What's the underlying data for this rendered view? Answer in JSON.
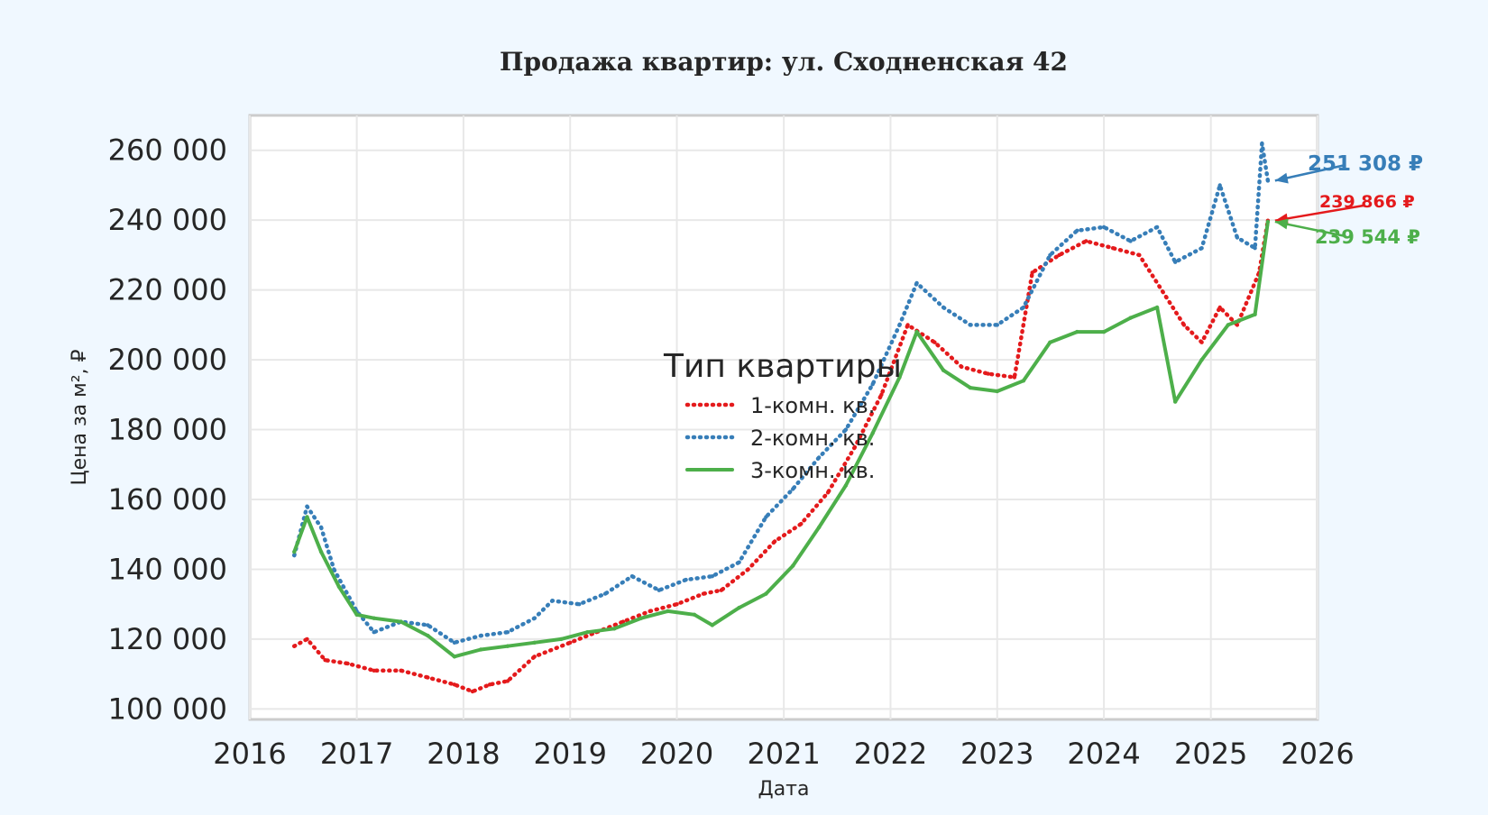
{
  "chart_data": {
    "type": "line",
    "title": "Продажа квартир: ул. Сходненская 42",
    "xlabel": "Дата",
    "ylabel": "Цена за м², ₽",
    "xlim": [
      "2016-01-01",
      "2026-01-01"
    ],
    "ylim": [
      97000,
      270000
    ],
    "x_ticks": [
      "2016",
      "2017",
      "2018",
      "2019",
      "2020",
      "2021",
      "2022",
      "2023",
      "2024",
      "2025",
      "2026"
    ],
    "y_ticks": [
      "100 000",
      "120 000",
      "140 000",
      "160 000",
      "180 000",
      "200 000",
      "220 000",
      "240 000",
      "260 000"
    ],
    "grid": true,
    "legend": {
      "title": "Тип квартиры",
      "placement": "center"
    },
    "series": [
      {
        "name": "1-комн. кв.",
        "color": "#e41a1c",
        "style": "dotted",
        "points": [
          [
            "2016-06-01",
            118000
          ],
          [
            "2016-07-15",
            120000
          ],
          [
            "2016-09-15",
            114000
          ],
          [
            "2016-12-01",
            113000
          ],
          [
            "2017-03-01",
            111000
          ],
          [
            "2017-06-01",
            111000
          ],
          [
            "2017-09-01",
            109000
          ],
          [
            "2017-12-01",
            107000
          ],
          [
            "2018-02-01",
            105000
          ],
          [
            "2018-04-01",
            107000
          ],
          [
            "2018-06-01",
            108000
          ],
          [
            "2018-09-01",
            115000
          ],
          [
            "2019-01-01",
            119000
          ],
          [
            "2019-04-01",
            122000
          ],
          [
            "2019-07-01",
            125000
          ],
          [
            "2019-10-01",
            128000
          ],
          [
            "2020-01-01",
            130000
          ],
          [
            "2020-04-01",
            133000
          ],
          [
            "2020-06-01",
            134000
          ],
          [
            "2020-09-01",
            140000
          ],
          [
            "2020-12-01",
            148000
          ],
          [
            "2021-03-01",
            153000
          ],
          [
            "2021-06-01",
            162000
          ],
          [
            "2021-09-01",
            175000
          ],
          [
            "2021-12-01",
            190000
          ],
          [
            "2022-03-01",
            210000
          ],
          [
            "2022-06-01",
            205000
          ],
          [
            "2022-09-01",
            198000
          ],
          [
            "2022-12-01",
            196000
          ],
          [
            "2023-03-01",
            195000
          ],
          [
            "2023-05-01",
            225000
          ],
          [
            "2023-08-01",
            230000
          ],
          [
            "2023-11-01",
            234000
          ],
          [
            "2024-02-01",
            232000
          ],
          [
            "2024-05-01",
            230000
          ],
          [
            "2024-08-01",
            218000
          ],
          [
            "2024-10-01",
            210000
          ],
          [
            "2024-12-01",
            205000
          ],
          [
            "2025-02-01",
            215000
          ],
          [
            "2025-04-01",
            210000
          ],
          [
            "2025-06-15",
            225000
          ],
          [
            "2025-07-15",
            239866
          ]
        ]
      },
      {
        "name": "2-комн. кв.",
        "color": "#377eb8",
        "style": "dotted",
        "points": [
          [
            "2016-06-01",
            144000
          ],
          [
            "2016-07-15",
            158000
          ],
          [
            "2016-09-01",
            152000
          ],
          [
            "2016-10-15",
            140000
          ],
          [
            "2017-01-01",
            128000
          ],
          [
            "2017-03-01",
            122000
          ],
          [
            "2017-06-01",
            125000
          ],
          [
            "2017-09-01",
            124000
          ],
          [
            "2017-12-01",
            119000
          ],
          [
            "2018-03-01",
            121000
          ],
          [
            "2018-06-01",
            122000
          ],
          [
            "2018-09-01",
            126000
          ],
          [
            "2018-11-01",
            131000
          ],
          [
            "2019-02-01",
            130000
          ],
          [
            "2019-05-01",
            133000
          ],
          [
            "2019-08-01",
            138000
          ],
          [
            "2019-11-01",
            134000
          ],
          [
            "2020-02-01",
            137000
          ],
          [
            "2020-05-01",
            138000
          ],
          [
            "2020-08-01",
            142000
          ],
          [
            "2020-11-01",
            155000
          ],
          [
            "2021-02-01",
            163000
          ],
          [
            "2021-05-01",
            172000
          ],
          [
            "2021-08-01",
            180000
          ],
          [
            "2021-11-01",
            193000
          ],
          [
            "2022-02-01",
            210000
          ],
          [
            "2022-04-01",
            222000
          ],
          [
            "2022-07-01",
            215000
          ],
          [
            "2022-10-01",
            210000
          ],
          [
            "2023-01-01",
            210000
          ],
          [
            "2023-04-01",
            215000
          ],
          [
            "2023-07-01",
            230000
          ],
          [
            "2023-10-01",
            237000
          ],
          [
            "2024-01-01",
            238000
          ],
          [
            "2024-04-01",
            234000
          ],
          [
            "2024-07-01",
            238000
          ],
          [
            "2024-09-01",
            228000
          ],
          [
            "2024-12-01",
            232000
          ],
          [
            "2025-02-01",
            250000
          ],
          [
            "2025-04-01",
            235000
          ],
          [
            "2025-06-01",
            232000
          ],
          [
            "2025-06-25",
            262000
          ],
          [
            "2025-07-15",
            251308
          ]
        ]
      },
      {
        "name": "3-комн. кв.",
        "color": "#4daf4a",
        "style": "solid",
        "points": [
          [
            "2016-06-01",
            145000
          ],
          [
            "2016-07-15",
            155000
          ],
          [
            "2016-09-01",
            145000
          ],
          [
            "2016-11-01",
            135000
          ],
          [
            "2017-01-01",
            127000
          ],
          [
            "2017-03-01",
            126000
          ],
          [
            "2017-06-01",
            125000
          ],
          [
            "2017-09-01",
            121000
          ],
          [
            "2017-12-01",
            115000
          ],
          [
            "2018-03-01",
            117000
          ],
          [
            "2018-06-01",
            118000
          ],
          [
            "2018-09-01",
            119000
          ],
          [
            "2018-12-01",
            120000
          ],
          [
            "2019-03-01",
            122000
          ],
          [
            "2019-06-01",
            123000
          ],
          [
            "2019-09-01",
            126000
          ],
          [
            "2019-12-01",
            128000
          ],
          [
            "2020-03-01",
            127000
          ],
          [
            "2020-05-01",
            124000
          ],
          [
            "2020-08-01",
            129000
          ],
          [
            "2020-11-01",
            133000
          ],
          [
            "2021-02-01",
            141000
          ],
          [
            "2021-05-01",
            152000
          ],
          [
            "2021-08-01",
            164000
          ],
          [
            "2021-11-01",
            179000
          ],
          [
            "2022-02-01",
            195000
          ],
          [
            "2022-04-01",
            208000
          ],
          [
            "2022-07-01",
            197000
          ],
          [
            "2022-10-01",
            192000
          ],
          [
            "2023-01-01",
            191000
          ],
          [
            "2023-04-01",
            194000
          ],
          [
            "2023-07-01",
            205000
          ],
          [
            "2023-10-01",
            208000
          ],
          [
            "2024-01-01",
            208000
          ],
          [
            "2024-04-01",
            212000
          ],
          [
            "2024-07-01",
            215000
          ],
          [
            "2024-09-01",
            188000
          ],
          [
            "2024-12-01",
            200000
          ],
          [
            "2025-03-01",
            210000
          ],
          [
            "2025-06-01",
            213000
          ],
          [
            "2025-07-15",
            239544
          ]
        ]
      }
    ],
    "annotations": [
      {
        "text": "251 308 ₽",
        "series": "2-комн. кв.",
        "color": "#377eb8"
      },
      {
        "text": "239 866 ₽",
        "series": "1-комн. кв.",
        "color": "#e41a1c"
      },
      {
        "text": "239 544 ₽",
        "series": "3-комн. кв.",
        "color": "#4daf4a"
      }
    ]
  }
}
